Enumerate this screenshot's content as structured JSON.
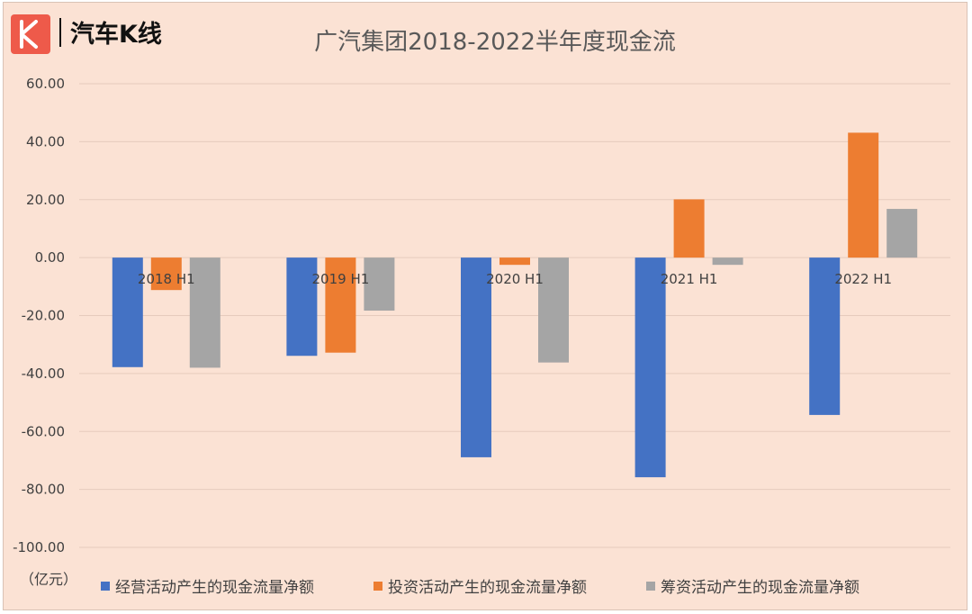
{
  "brand": {
    "name": "汽车K线",
    "logo_letter": "K",
    "logo_color": "#ee5a4a"
  },
  "unit_label": "（亿元）",
  "chart_data": {
    "type": "bar",
    "title": "广汽集团2018-2022半年度现金流",
    "categories": [
      "2018 H1",
      "2019 H1",
      "2020 H1",
      "2021 H1",
      "2022 H1"
    ],
    "series": [
      {
        "name": "经营活动产生的现金流量净额",
        "color": "#4472c4",
        "values": [
          -37.8,
          -33.9,
          -68.9,
          -75.8,
          -54.3
        ]
      },
      {
        "name": "投资活动产生的现金流量净额",
        "color": "#ed7d31",
        "values": [
          -11.2,
          -32.8,
          -2.5,
          20.1,
          43.1
        ]
      },
      {
        "name": "筹资活动产生的现金流量净额",
        "color": "#a5a5a5",
        "values": [
          -38.0,
          -18.3,
          -36.2,
          -2.5,
          16.8
        ]
      }
    ],
    "ylim": [
      -100,
      60
    ],
    "yticks": [
      "60.00",
      "40.00",
      "20.00",
      "0.00",
      "-20.00",
      "-40.00",
      "-60.00",
      "-80.00",
      "-100.00"
    ],
    "grid": true,
    "legend_position": "bottom"
  }
}
